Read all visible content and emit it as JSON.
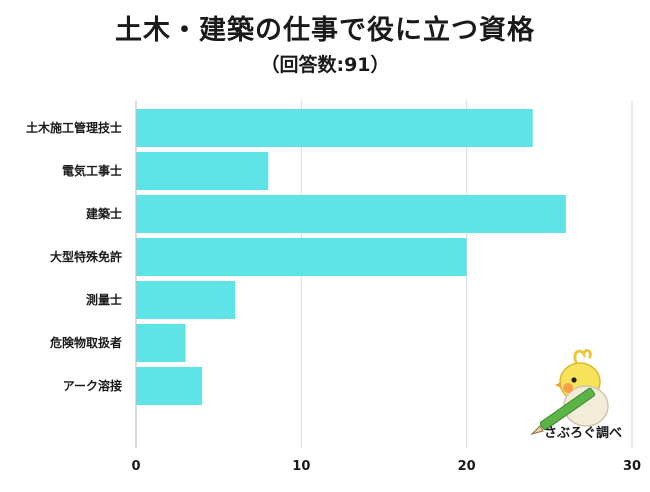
{
  "chart_data": {
    "type": "bar",
    "orientation": "horizontal",
    "title": "土木・建築の仕事で役に立つ資格",
    "subtitle": "（回答数:91）",
    "categories": [
      "土木施工管理技士",
      "電気工事士",
      "建築士",
      "大型特殊免許",
      "測量士",
      "危険物取扱者",
      "アーク溶接"
    ],
    "values": [
      24,
      8,
      26,
      20,
      6,
      3,
      4
    ],
    "xlim": [
      0,
      30
    ],
    "xticks": [
      0,
      10,
      20,
      30
    ],
    "grid": true,
    "bar_color": "#5ee3e6",
    "grid_color": "#d9d9d9"
  },
  "logo": {
    "text": "さぶろぐ調べ",
    "icon": "cockatiel-with-pencil-icon",
    "bird_color": "#f7e35a",
    "cheek_color": "#f5a04a",
    "pencil_color": "#5bb546"
  }
}
